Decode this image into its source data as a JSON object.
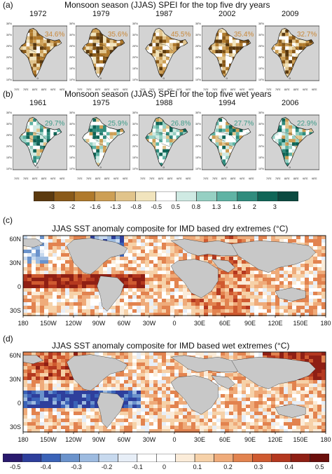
{
  "panel_a": {
    "letter": "(a)",
    "title": "Monsoon season (JJAS) SPEI for the top five dry years",
    "years": [
      "1972",
      "1979",
      "1987",
      "2002",
      "2009"
    ],
    "percents": [
      "34.6%",
      "35.6%",
      "45.5%",
      "35.4%",
      "32.7%"
    ],
    "pct_color": "#c8883a"
  },
  "panel_b": {
    "letter": "(b)",
    "title": "Monsoon season (JJAS) SPEI for the top five wet years",
    "years": [
      "1961",
      "1975",
      "1988",
      "1994",
      "2006"
    ],
    "percents": [
      "29.7%",
      "25.9%",
      "26.8%",
      "27.7%",
      "22.9%"
    ],
    "pct_color": "#3f9a88"
  },
  "india_lat_labels": [
    "35°N",
    "30°N",
    "25°N",
    "20°N",
    "15°N",
    "10°N"
  ],
  "india_lon_labels": [
    "70°E",
    "75°E",
    "80°E",
    "85°E",
    "90°E",
    "95°E"
  ],
  "spei_colorbar": {
    "labels": [
      "-3",
      "-2",
      "-1.6",
      "-1.3",
      "-0.8",
      "-0.5",
      "0.5",
      "0.8",
      "1.3",
      "1.6",
      "2",
      "3"
    ],
    "colors": [
      "#5c3a0e",
      "#8a5a19",
      "#b07a2c",
      "#cd9f55",
      "#e1c48b",
      "#f1e4bd",
      "#ffffff",
      "#cfeae3",
      "#96d0c3",
      "#5fb3a4",
      "#2f8c7d",
      "#0f6657",
      "#0a4a40"
    ]
  },
  "panel_c": {
    "letter": "(c)",
    "title": "JJAS SST anomaly composite for IMD based dry extremes (",
    "unit": "°C)"
  },
  "panel_d": {
    "letter": "(d)",
    "title": "JJAS SST anomaly composite for IMD based wet extremes (",
    "unit": "°C)"
  },
  "world_lat_labels": [
    "60N",
    "30N",
    "0",
    "30S"
  ],
  "world_lon_labels": [
    "180",
    "150W",
    "120W",
    "90W",
    "60W",
    "30W",
    "0",
    "30E",
    "60E",
    "90E",
    "120E",
    "150E",
    "180"
  ],
  "sst_colorbar": {
    "labels": [
      "-0.5",
      "-0.4",
      "-0.3",
      "-0.2",
      "-0.1",
      "0",
      "0.1",
      "0.2",
      "0.3",
      "0.4",
      "0.5"
    ],
    "colors": [
      "#2a1a6e",
      "#2e3f9c",
      "#3b63b8",
      "#6b93cc",
      "#9dbbe0",
      "#c7d9ee",
      "#e7eef7",
      "#ffffff",
      "#ffffff",
      "#fbecd9",
      "#f6d1a8",
      "#ef ab7a",
      "#e2834f",
      "#cf5a30",
      "#b4381f",
      "#8f1f14",
      "#6b0f0c"
    ]
  }
}
